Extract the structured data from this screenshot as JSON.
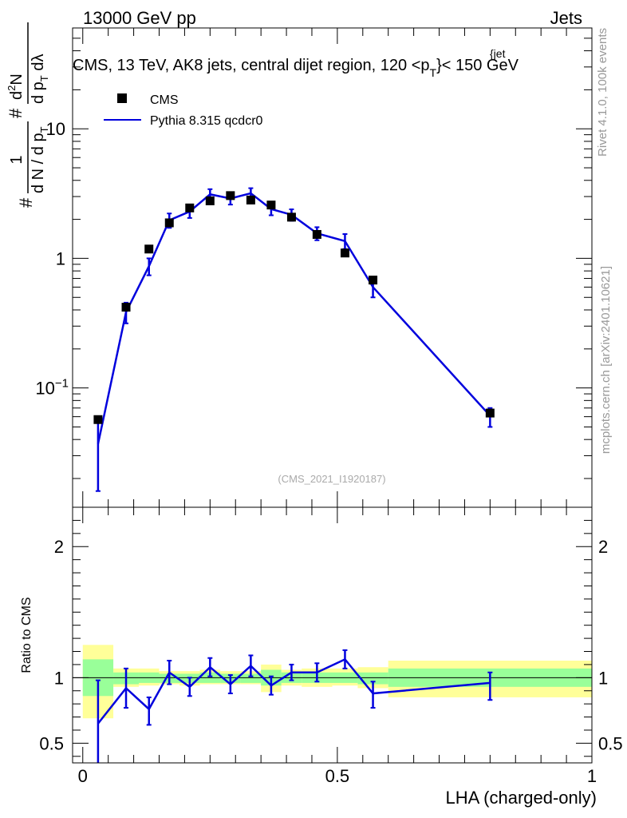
{
  "header": {
    "energy": "13000 GeV pp",
    "group": "Jets",
    "title": "CMS, 13 TeV, AK8 jets, central dijet region, 120 <p",
    "title_sub": "T",
    "title_sup": "{jet",
    "title_end": "}< 150 GeV",
    "watermark": "(CMS_2021_I1920187)",
    "side_rivet": "Rivet 4.1.0,  100k events",
    "side_site": "mcplots.cern.ch [arXiv:2401.10621]"
  },
  "chart_data": [
    {
      "type": "scatter",
      "panel": "main",
      "title": "CMS, 13 TeV, AK8 jets, central dijet region, 120 < p_T^{jet} < 150 GeV",
      "ylabel": "(1/(dN/dp_T)) d^2N/(dp_T dλ)",
      "ylabel_parts": {
        "num": "1",
        "den": "d N / d p",
        "num2": "d",
        "num2_sup": "2",
        "num2_n": "N",
        "den2": "d p",
        "den2_tail": " dλ",
        "sub": "T",
        "hash": "#"
      },
      "yscale": "log",
      "ylim": [
        0.012,
        60
      ],
      "xlim": [
        -0.02,
        1.0
      ],
      "yticks": [
        {
          "value": 10,
          "label": "10"
        },
        {
          "value": 1,
          "label": "1"
        },
        {
          "value": 0.1,
          "label": "10",
          "sup": "−1"
        }
      ],
      "legend_position": "top-left",
      "series": [
        {
          "name": "CMS",
          "style": "markers",
          "color": "#000000",
          "x": [
            0.03,
            0.085,
            0.13,
            0.17,
            0.21,
            0.25,
            0.29,
            0.33,
            0.37,
            0.41,
            0.46,
            0.515,
            0.57,
            0.8
          ],
          "y": [
            0.057,
            0.42,
            1.18,
            1.88,
            2.45,
            2.78,
            3.05,
            2.82,
            2.58,
            2.08,
            1.53,
            1.1,
            0.68,
            0.064
          ]
        },
        {
          "name": "Pythia 8.315 qcdcr0",
          "style": "line",
          "color": "#0000dd",
          "x": [
            0.03,
            0.085,
            0.13,
            0.17,
            0.21,
            0.25,
            0.29,
            0.33,
            0.37,
            0.41,
            0.46,
            0.515,
            0.57,
            0.8
          ],
          "y": [
            0.037,
            0.385,
            0.87,
            1.97,
            2.3,
            3.12,
            2.9,
            3.18,
            2.4,
            2.17,
            1.56,
            1.36,
            0.6,
            0.061
          ],
          "yerr_low": [
            0.021,
            0.07,
            0.13,
            0.25,
            0.25,
            0.3,
            0.3,
            0.3,
            0.25,
            0.22,
            0.18,
            0.18,
            0.1,
            0.011
          ],
          "yerr_high": [
            0.021,
            0.07,
            0.13,
            0.25,
            0.25,
            0.3,
            0.3,
            0.3,
            0.25,
            0.22,
            0.18,
            0.18,
            0.1,
            0.009
          ]
        }
      ]
    },
    {
      "type": "line",
      "panel": "ratio",
      "ylabel": "Ratio to CMS",
      "xlabel": "LHA (charged-only)",
      "ylim": [
        0.35,
        2.3
      ],
      "xlim": [
        -0.02,
        1.0
      ],
      "yticks": [
        {
          "value": 0.5,
          "label": "0.5"
        },
        {
          "value": 1,
          "label": "1"
        },
        {
          "value": 2,
          "label": "2"
        }
      ],
      "xticks": [
        {
          "value": 0,
          "label": "0"
        },
        {
          "value": 0.5,
          "label": "0.5"
        },
        {
          "value": 1,
          "label": "1"
        }
      ],
      "bands": {
        "x_edges": [
          0.0,
          0.06,
          0.11,
          0.15,
          0.19,
          0.23,
          0.27,
          0.31,
          0.35,
          0.39,
          0.43,
          0.49,
          0.54,
          0.6,
          1.0
        ],
        "yellow_low": [
          0.69,
          0.93,
          0.94,
          0.95,
          0.94,
          0.95,
          0.95,
          0.95,
          0.89,
          0.94,
          0.93,
          0.94,
          0.92,
          0.85
        ],
        "yellow_high": [
          1.25,
          1.07,
          1.07,
          1.05,
          1.05,
          1.06,
          1.05,
          1.05,
          1.1,
          1.06,
          1.07,
          1.07,
          1.08,
          1.13
        ],
        "green_low": [
          0.86,
          0.95,
          0.96,
          0.96,
          0.96,
          0.96,
          0.96,
          0.96,
          0.94,
          0.96,
          0.96,
          0.96,
          0.95,
          0.93
        ],
        "green_high": [
          1.14,
          1.04,
          1.04,
          1.03,
          1.03,
          1.04,
          1.03,
          1.03,
          1.06,
          1.04,
          1.04,
          1.04,
          1.04,
          1.07
        ],
        "yellow_color": "#ffff99",
        "green_color": "#99ff99"
      },
      "series": [
        {
          "name": "Pythia 8.315 qcdcr0",
          "color": "#0000dd",
          "x": [
            0.03,
            0.085,
            0.13,
            0.17,
            0.21,
            0.25,
            0.29,
            0.33,
            0.37,
            0.41,
            0.46,
            0.515,
            0.57,
            0.8
          ],
          "y": [
            0.65,
            0.92,
            0.76,
            1.04,
            0.93,
            1.08,
            0.95,
            1.09,
            0.94,
            1.04,
            1.04,
            1.14,
            0.88,
            0.96
          ],
          "yerr_low": [
            0.35,
            0.15,
            0.12,
            0.09,
            0.07,
            0.07,
            0.07,
            0.08,
            0.07,
            0.06,
            0.07,
            0.07,
            0.11,
            0.13
          ],
          "yerr_high": [
            0.33,
            0.15,
            0.09,
            0.09,
            0.07,
            0.07,
            0.07,
            0.08,
            0.07,
            0.06,
            0.07,
            0.07,
            0.09,
            0.08
          ]
        }
      ]
    }
  ]
}
